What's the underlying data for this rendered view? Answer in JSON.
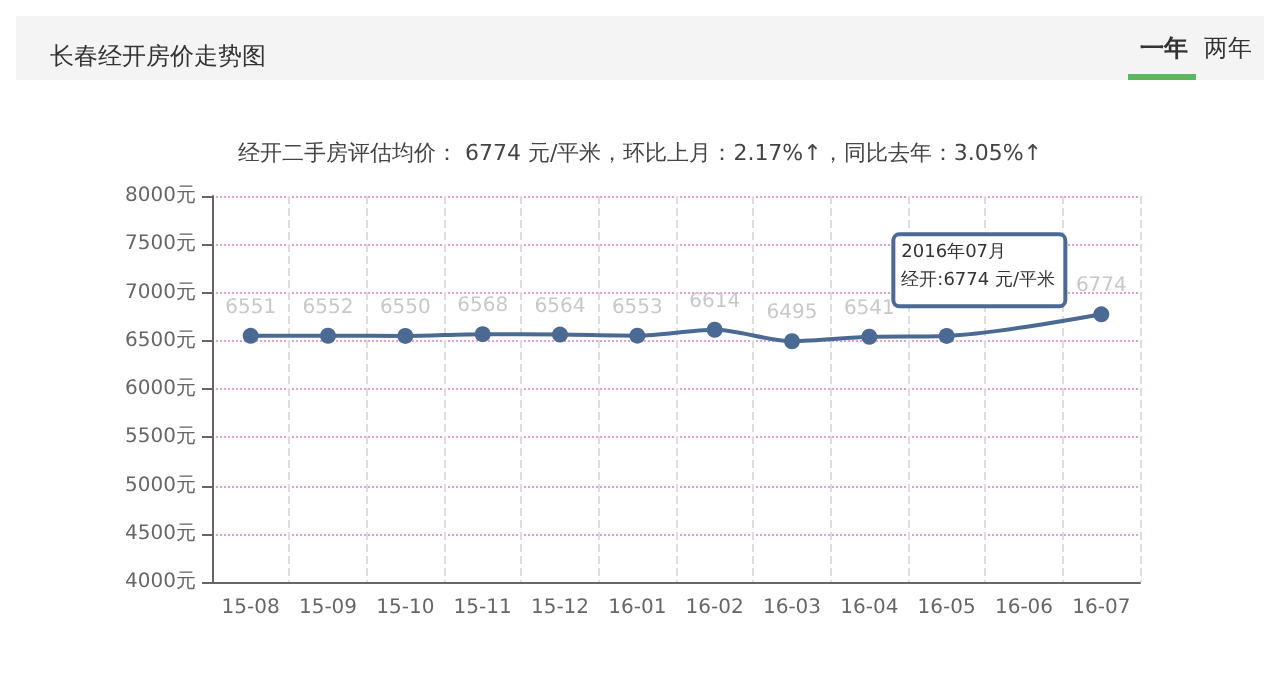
{
  "chart_data": {
    "type": "line",
    "title": "长春经开房价走势图",
    "subtitle": "经开二手房评估均价： 6774 元/平米，环比上月：2.17%↑，同比去年：3.05%↑",
    "categories": [
      "15-08",
      "15-09",
      "15-10",
      "15-11",
      "15-12",
      "16-01",
      "16-02",
      "16-03",
      "16-04",
      "16-05",
      "16-06",
      "16-07"
    ],
    "series": [
      {
        "color": "#4a6a94",
        "values": [
          6551,
          6552,
          6550,
          6568,
          6564,
          6553,
          6614,
          6495,
          6541,
          6550,
          null,
          6774
        ],
        "value_labels": [
          "6551",
          "6552",
          "6550",
          "6568",
          "6564",
          "6553",
          "6614",
          "6495",
          "6541",
          null,
          null,
          "6774"
        ]
      }
    ],
    "ylim": [
      4000,
      8000
    ],
    "yticks": [
      {
        "value": 4000,
        "label": "4000元"
      },
      {
        "value": 4500,
        "label": "4500元"
      },
      {
        "value": 5000,
        "label": "5000元"
      },
      {
        "value": 5500,
        "label": "5500元"
      },
      {
        "value": 6000,
        "label": "6000元"
      },
      {
        "value": 6500,
        "label": "6500元"
      },
      {
        "value": 7000,
        "label": "7000元"
      },
      {
        "value": 7500,
        "label": "7500元"
      },
      {
        "value": 8000,
        "label": "8000元"
      }
    ],
    "grid": true,
    "marker": "circle",
    "line_style": "solid",
    "annotations": [
      "一年",
      "两年",
      "2016年07月",
      "经开:6774 元/平米"
    ]
  }
}
